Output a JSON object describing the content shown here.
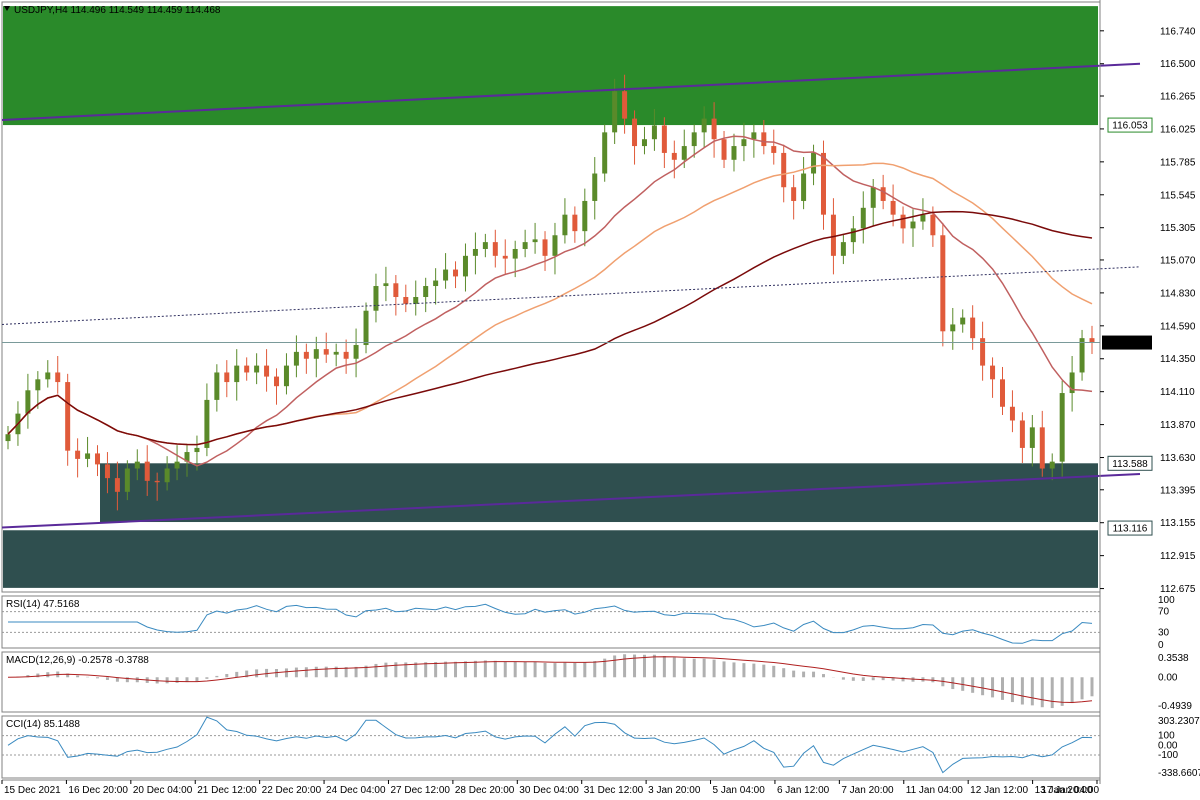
{
  "header": {
    "symbol": "USDJPY,H4",
    "ohlc": "114.496 114.549 114.459 114.468"
  },
  "colors": {
    "bull": "#5a8a2a",
    "bear": "#e05a3a",
    "supply_zone": "#2a8a2a",
    "demand_zone": "#2f4f4f",
    "channel": "#5a2a9a",
    "ma_fast": "#c06060",
    "ma_mid": "#f0a070",
    "ma_slow": "#7a0a0a",
    "indicator_line": "#3a8ac0",
    "macd_signal": "#b02020",
    "macd_hist": "#b0b0b0"
  },
  "chart_data": [
    {
      "type": "candlestick",
      "symbol": "USDJPY",
      "timeframe": "H4",
      "y_ticks": [
        "116.740",
        "116.500",
        "116.265",
        "116.025",
        "115.785",
        "115.545",
        "115.305",
        "115.070",
        "114.830",
        "114.590",
        "114.350",
        "114.110",
        "113.870",
        "113.630",
        "113.395",
        "113.155",
        "112.915",
        "112.675"
      ],
      "ylim": [
        112.65,
        116.95
      ],
      "x_labels": [
        "15 Dec 2021",
        "16 Dec 20:00",
        "20 Dec 04:00",
        "21 Dec 12:00",
        "22 Dec 20:00",
        "24 Dec 04:00",
        "27 Dec 12:00",
        "28 Dec 20:00",
        "30 Dec 04:00",
        "31 Dec 12:00",
        "3 Jan 20:00",
        "5 Jan 04:00",
        "6 Jan 12:00",
        "7 Jan 20:00",
        "11 Jan 04:00",
        "12 Jan 12:00",
        "13 Jan 20:00",
        "17 Jan 04:00"
      ],
      "current_price": "114.468",
      "levels": [
        "116.053",
        "113.588",
        "113.116"
      ],
      "closes": [
        113.8,
        113.95,
        114.12,
        114.2,
        114.25,
        114.18,
        113.68,
        113.62,
        113.66,
        113.58,
        113.48,
        113.38,
        113.55,
        113.6,
        113.46,
        113.45,
        113.55,
        113.6,
        113.67,
        113.7,
        114.05,
        114.25,
        114.18,
        114.3,
        114.25,
        114.3,
        114.22,
        114.15,
        114.3,
        114.4,
        114.35,
        114.42,
        114.38,
        114.4,
        114.35,
        114.45,
        114.7,
        114.88,
        114.9,
        114.8,
        114.75,
        114.8,
        114.88,
        114.92,
        115.0,
        114.95,
        115.1,
        115.15,
        115.2,
        115.1,
        115.08,
        115.15,
        115.2,
        115.22,
        115.1,
        115.25,
        115.4,
        115.28,
        115.5,
        115.7,
        116.0,
        116.3,
        116.1,
        115.9,
        115.95,
        116.05,
        115.85,
        115.8,
        115.9,
        116.0,
        116.1,
        115.95,
        115.8,
        115.9,
        115.95,
        116.0,
        115.9,
        115.85,
        115.6,
        115.5,
        115.7,
        115.85,
        115.4,
        115.1,
        115.2,
        115.3,
        115.45,
        115.6,
        115.5,
        115.4,
        115.3,
        115.35,
        115.4,
        115.25,
        114.55,
        114.6,
        114.65,
        114.5,
        114.3,
        114.2,
        114.0,
        113.9,
        113.7,
        113.85,
        113.55,
        113.6,
        114.1,
        114.25,
        114.5,
        114.47
      ],
      "indicators": {
        "rsi": {
          "title": "RSI(14) 47.5168",
          "levels": [
            "100",
            "70",
            "30",
            "0"
          ]
        },
        "macd": {
          "title": "MACD(12,26,9) -0.2578 -0.3788",
          "levels": [
            "0.3538",
            "0.00",
            "-0.4939"
          ]
        },
        "cci": {
          "title": "CCI(14) 85.1488",
          "levels": [
            "303.2307",
            "100",
            "0.00",
            "-100",
            "-338.6607"
          ]
        }
      }
    }
  ]
}
